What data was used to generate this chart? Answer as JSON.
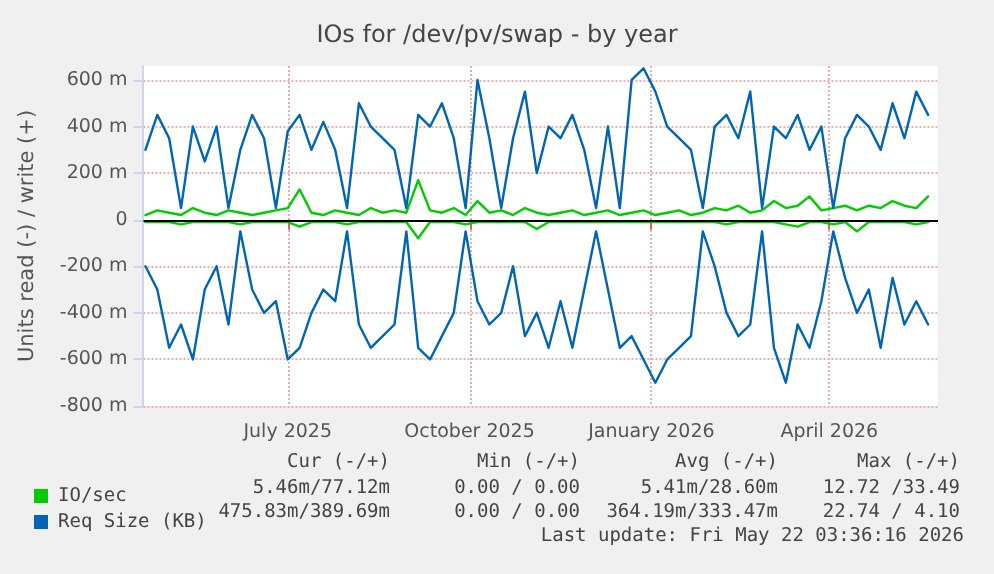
{
  "chart_data": {
    "type": "line",
    "title": "IOs for /dev/pv/swap - by year",
    "ylabel": "Units read (-) / write (+)",
    "x": [
      "2025-04-20",
      "2025-04-26",
      "2025-05-02",
      "2025-05-08",
      "2025-05-14",
      "2025-05-20",
      "2025-05-26",
      "2025-06-01",
      "2025-06-07",
      "2025-06-13",
      "2025-06-19",
      "2025-06-25",
      "2025-07-01",
      "2025-07-07",
      "2025-07-13",
      "2025-07-19",
      "2025-07-25",
      "2025-07-31",
      "2025-08-06",
      "2025-08-12",
      "2025-08-18",
      "2025-08-24",
      "2025-08-30",
      "2025-09-05",
      "2025-09-11",
      "2025-09-17",
      "2025-09-23",
      "2025-09-29",
      "2025-10-05",
      "2025-10-11",
      "2025-10-17",
      "2025-10-23",
      "2025-10-29",
      "2025-11-04",
      "2025-11-10",
      "2025-11-16",
      "2025-11-22",
      "2025-11-28",
      "2025-12-04",
      "2025-12-10",
      "2025-12-16",
      "2025-12-22",
      "2025-12-28",
      "2026-01-03",
      "2026-01-09",
      "2026-01-15",
      "2026-01-21",
      "2026-01-27",
      "2026-02-02",
      "2026-02-08",
      "2026-02-14",
      "2026-02-20",
      "2026-02-26",
      "2026-03-04",
      "2026-03-10",
      "2026-03-16",
      "2026-03-22",
      "2026-03-28",
      "2026-04-03",
      "2026-04-09",
      "2026-04-15",
      "2026-04-21",
      "2026-04-27",
      "2026-05-03",
      "2026-05-09",
      "2026-05-15",
      "2026-05-21"
    ],
    "series": [
      {
        "name": "IO/sec",
        "color": "#00cc00",
        "values": [
          20,
          40,
          30,
          20,
          50,
          30,
          20,
          40,
          30,
          20,
          30,
          40,
          50,
          130,
          30,
          20,
          40,
          30,
          20,
          50,
          30,
          40,
          30,
          170,
          40,
          30,
          50,
          20,
          80,
          30,
          40,
          20,
          50,
          30,
          20,
          30,
          40,
          20,
          30,
          40,
          20,
          30,
          40,
          20,
          30,
          40,
          20,
          30,
          50,
          40,
          60,
          30,
          40,
          80,
          50,
          60,
          100,
          40,
          50,
          60,
          40,
          60,
          50,
          80,
          60,
          50,
          100
        ]
      },
      {
        "color": "#00cc00",
        "values": [
          -10,
          -10,
          -10,
          -20,
          -10,
          -10,
          -10,
          -10,
          -20,
          -10,
          -10,
          -10,
          -10,
          -30,
          -10,
          -10,
          -10,
          -20,
          -10,
          -10,
          -10,
          -10,
          -10,
          -80,
          -10,
          -10,
          -10,
          -20,
          -10,
          -10,
          -10,
          -10,
          -10,
          -40,
          -10,
          -10,
          -10,
          -10,
          -10,
          -10,
          -10,
          -10,
          -10,
          -10,
          -10,
          -10,
          -10,
          -10,
          -10,
          -20,
          -10,
          -10,
          -10,
          -10,
          -20,
          -30,
          -10,
          -10,
          -20,
          -10,
          -50,
          -10,
          -10,
          -10,
          -10,
          -20,
          -10
        ]
      },
      {
        "name": "Req Size (KB)",
        "color": "#0066b3",
        "values": [
          300,
          450,
          350,
          50,
          400,
          250,
          400,
          50,
          300,
          450,
          350,
          50,
          380,
          450,
          300,
          420,
          300,
          50,
          500,
          400,
          350,
          300,
          50,
          450,
          400,
          500,
          350,
          50,
          600,
          350,
          50,
          350,
          550,
          200,
          400,
          350,
          450,
          300,
          50,
          400,
          50,
          600,
          650,
          550,
          400,
          350,
          300,
          50,
          400,
          450,
          350,
          550,
          50,
          400,
          350,
          450,
          300,
          400,
          50,
          350,
          450,
          400,
          300,
          500,
          350,
          550,
          450
        ]
      },
      {
        "color": "#0066b3",
        "values": [
          -200,
          -300,
          -550,
          -450,
          -600,
          -300,
          -200,
          -450,
          -50,
          -300,
          -400,
          -350,
          -600,
          -550,
          -400,
          -300,
          -350,
          -50,
          -450,
          -550,
          -500,
          -450,
          -50,
          -550,
          -600,
          -500,
          -400,
          -50,
          -350,
          -450,
          -400,
          -200,
          -500,
          -400,
          -550,
          -350,
          -550,
          -300,
          -50,
          -300,
          -550,
          -500,
          -600,
          -700,
          -600,
          -550,
          -500,
          -50,
          -200,
          -400,
          -500,
          -450,
          -50,
          -550,
          -700,
          -450,
          -550,
          -350,
          -50,
          -250,
          -400,
          -300,
          -550,
          -250,
          -450,
          -350,
          -450
        ]
      }
    ],
    "xlim": [
      "2025-04-19",
      "2026-05-26"
    ],
    "xticks": [
      {
        "value": "2025-07-01",
        "label": "July 2025"
      },
      {
        "value": "2025-10-01",
        "label": "October 2025"
      },
      {
        "value": "2026-01-01",
        "label": "January 2026"
      },
      {
        "value": "2026-04-01",
        "label": "April 2026"
      }
    ],
    "ylim": [
      -800,
      660
    ],
    "yticks": [
      {
        "value": -800,
        "label": "-800 m"
      },
      {
        "value": -600,
        "label": "-600 m"
      },
      {
        "value": -400,
        "label": "-400 m"
      },
      {
        "value": -200,
        "label": "-200 m"
      },
      0,
      {
        "value": 200,
        "label": "200 m"
      },
      {
        "value": 400,
        "label": "400 m"
      },
      {
        "value": 600,
        "label": "600 m"
      }
    ],
    "ref_lines": [
      {
        "axis": "y",
        "value": 0,
        "color": "#000000"
      }
    ],
    "grid": true,
    "legend": "bottom left",
    "marker": "none",
    "line_style": "solid",
    "annotations": [
      "Cur (-/+)",
      "Min (-/+)",
      "Avg (-/+)",
      "Max (-/+)",
      "5.46m/77.12m",
      "0.00 / 0.00",
      "5.41m/28.60m",
      "12.72 /33.49",
      "475.83m/389.69m",
      "0.00 / 0.00",
      "364.19m/333.47m",
      "22.74 / 4.10",
      "Last update: Fri May 22 03:36:16 2026"
    ]
  }
}
